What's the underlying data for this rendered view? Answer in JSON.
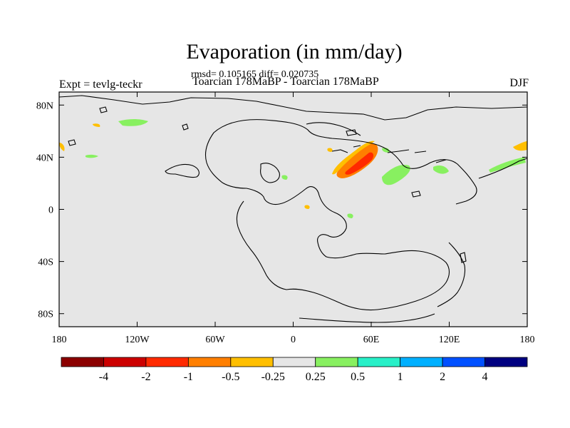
{
  "title": "Evaporation (in mm/day)",
  "stats_line": "rmsd= 0.105165 diff= 0.020735",
  "subtitle": "Toarcian 178MaBP - Toarcian 178MaBP",
  "left_label": "Expt = tevlg-teckr",
  "right_label": "DJF",
  "map": {
    "projection": "cylindrical-equidistant",
    "lon_range": [
      -180,
      180
    ],
    "lat_range": [
      -90,
      90
    ],
    "background_color": "#e6e6e6",
    "x_ticks": [
      {
        "lon": -180,
        "label": "180"
      },
      {
        "lon": -120,
        "label": "120W"
      },
      {
        "lon": -60,
        "label": "60W"
      },
      {
        "lon": 0,
        "label": "0"
      },
      {
        "lon": 60,
        "label": "60E"
      },
      {
        "lon": 120,
        "label": "120E"
      },
      {
        "lon": 180,
        "label": "180"
      }
    ],
    "y_ticks": [
      {
        "lat": 80,
        "label": "80N"
      },
      {
        "lat": 40,
        "label": "40N"
      },
      {
        "lat": 0,
        "label": "0"
      },
      {
        "lat": -40,
        "label": "40S"
      },
      {
        "lat": -80,
        "label": "80S"
      }
    ]
  },
  "colorbar": {
    "colors": [
      "#8b0000",
      "#cc0000",
      "#ff2a00",
      "#ff7f00",
      "#ffbf00",
      "#e6e6e6",
      "#88f060",
      "#28f0c8",
      "#00b0ff",
      "#0050ff",
      "#000080"
    ],
    "labels": [
      "-4",
      "-2",
      "-1",
      "-0.5",
      "-0.25",
      "0.25",
      "0.5",
      "1",
      "2",
      "4"
    ]
  }
}
